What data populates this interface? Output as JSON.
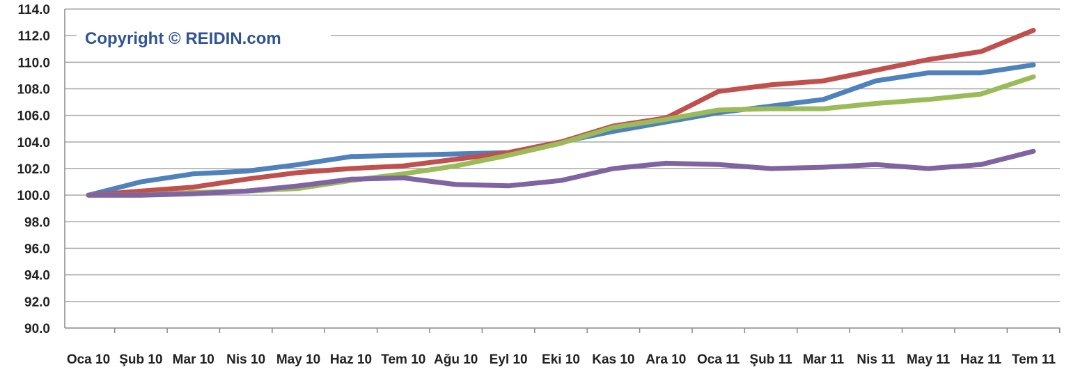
{
  "copyright": "Copyright © REIDIN.com",
  "colors": {
    "grid": "#a6a6a6",
    "axis": "#888888",
    "copyright": "#2f5496"
  },
  "chart_data": {
    "type": "line",
    "title": "",
    "xlabel": "",
    "ylabel": "",
    "categories": [
      "Oca 10",
      "Şub 10",
      "Mar 10",
      "Nis 10",
      "May 10",
      "Haz 10",
      "Tem 10",
      "Ağu 10",
      "Eyl 10",
      "Eki 10",
      "Kas 10",
      "Ara 10",
      "Oca 11",
      "Şub 11",
      "Mar 11",
      "Nis 11",
      "May 11",
      "Haz 11",
      "Tem 11"
    ],
    "ylim": [
      90,
      114
    ],
    "yticks": [
      "90.0",
      "92.0",
      "94.0",
      "96.0",
      "98.0",
      "100.0",
      "102.0",
      "104.0",
      "106.0",
      "108.0",
      "110.0",
      "112.0",
      "114.0"
    ],
    "grid": true,
    "legend": "none",
    "series": [
      {
        "color": "#4f81bd",
        "values": [
          100.0,
          101.0,
          101.6,
          101.8,
          102.3,
          102.9,
          103.0,
          103.1,
          103.2,
          104.0,
          104.8,
          105.5,
          106.2,
          106.7,
          107.2,
          108.6,
          109.2,
          109.2,
          109.8
        ]
      },
      {
        "color": "#c0504d",
        "values": [
          100.0,
          100.3,
          100.6,
          101.2,
          101.7,
          102.0,
          102.2,
          102.7,
          103.2,
          104.0,
          105.2,
          105.8,
          107.8,
          108.3,
          108.6,
          109.4,
          110.2,
          110.8,
          112.4
        ]
      },
      {
        "color": "#9bbb59",
        "values": [
          100.0,
          100.0,
          100.2,
          100.3,
          100.5,
          101.1,
          101.6,
          102.2,
          103.0,
          103.9,
          105.1,
          105.7,
          106.4,
          106.5,
          106.5,
          106.9,
          107.2,
          107.6,
          108.9
        ]
      },
      {
        "color": "#8064a2",
        "values": [
          100.0,
          100.0,
          100.1,
          100.3,
          100.7,
          101.2,
          101.3,
          100.8,
          100.7,
          101.1,
          102.0,
          102.4,
          102.3,
          102.0,
          102.1,
          102.3,
          102.0,
          102.3,
          103.3
        ]
      }
    ]
  }
}
